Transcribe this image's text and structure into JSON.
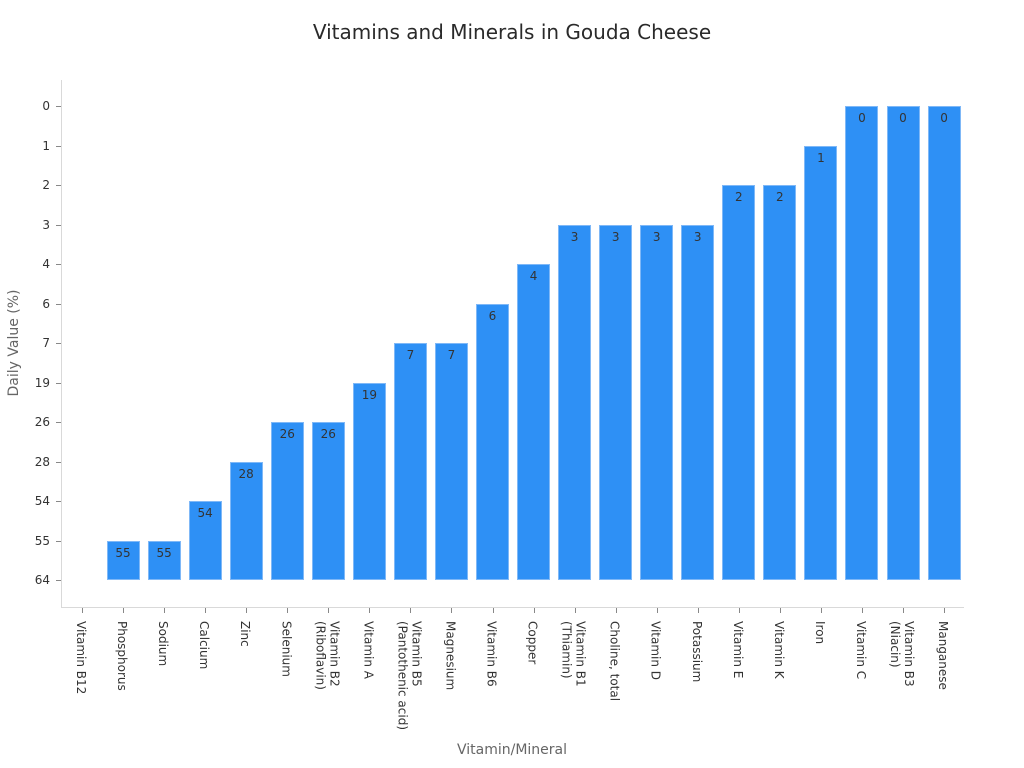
{
  "chart_data": {
    "type": "bar",
    "title": "Vitamins and Minerals in Gouda Cheese",
    "xlabel": "Vitamin/Mineral",
    "ylabel": "Daily Value (%)",
    "y_axis_type": "categorical_reversed",
    "y_ticks": [
      "0",
      "1",
      "2",
      "3",
      "4",
      "6",
      "7",
      "19",
      "26",
      "28",
      "54",
      "55",
      "64"
    ],
    "categories": [
      "Vitamin B12",
      "Phosphorus",
      "Sodium",
      "Calcium",
      "Zinc",
      "Selenium",
      "Vitamin B2\n(Riboflavin)",
      "Vitamin A",
      "Vitamin B5\n(Pantothenic acid)",
      "Magnesium",
      "Vitamin B6",
      "Copper",
      "Vitamin B1\n(Thiamin)",
      "Choline, total",
      "Vitamin D",
      "Potassium",
      "Vitamin E",
      "Vitamin K",
      "Iron",
      "Vitamin C",
      "Vitamin B3\n(Niacin)",
      "Manganese"
    ],
    "values": [
      64,
      55,
      55,
      54,
      28,
      26,
      26,
      19,
      7,
      7,
      6,
      4,
      3,
      3,
      3,
      3,
      2,
      2,
      1,
      0,
      0,
      0
    ],
    "bar_labels": [
      "",
      "55",
      "55",
      "54",
      "28",
      "26",
      "26",
      "19",
      "7",
      "7",
      "6",
      "4",
      "3",
      "3",
      "3",
      "3",
      "2",
      "2",
      "1",
      "0",
      "0",
      "0"
    ],
    "bar_color": "#2e90f5",
    "grid": false,
    "legend": null
  }
}
